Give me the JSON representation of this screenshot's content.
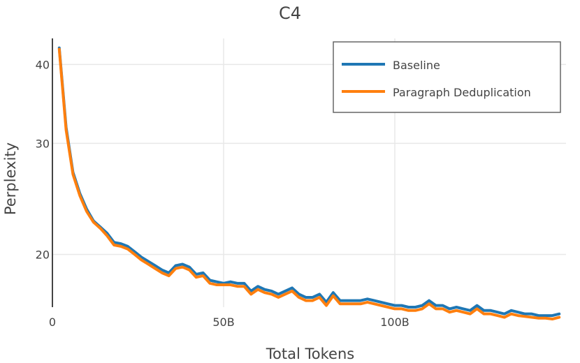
{
  "chart_data": {
    "type": "line",
    "title": "C4",
    "xlabel": "Total Tokens",
    "ylabel": "Perplexity",
    "y_scale": "log",
    "xlim": [
      0,
      150
    ],
    "ylim": [
      16.5,
      44
    ],
    "x_tick_values": [
      0,
      50,
      100
    ],
    "x_tick_labels": [
      "0",
      "50B",
      "100B"
    ],
    "y_tick_values": [
      20,
      30,
      40
    ],
    "y_tick_labels": [
      "20",
      "30",
      "40"
    ],
    "grid": true,
    "legend_position": "top-right",
    "x": [
      2,
      4,
      6,
      8,
      10,
      12,
      14,
      16,
      18,
      20,
      22,
      24,
      26,
      28,
      30,
      32,
      34,
      36,
      38,
      40,
      42,
      44,
      46,
      48,
      50,
      52,
      54,
      56,
      58,
      60,
      62,
      64,
      66,
      68,
      70,
      72,
      74,
      76,
      78,
      80,
      82,
      84,
      86,
      88,
      90,
      92,
      94,
      96,
      98,
      100,
      102,
      104,
      106,
      108,
      110,
      112,
      114,
      116,
      118,
      120,
      122,
      124,
      126,
      128,
      130,
      132,
      134,
      136,
      138,
      140,
      142,
      144,
      146,
      148
    ],
    "series": [
      {
        "name": "Baseline",
        "color": "#1f77b4",
        "values": [
          42.5,
          31.8,
          27.0,
          25.0,
          23.6,
          22.6,
          22.1,
          21.6,
          20.9,
          20.8,
          20.6,
          20.2,
          19.8,
          19.5,
          19.2,
          18.9,
          18.7,
          19.2,
          19.3,
          19.1,
          18.6,
          18.7,
          18.2,
          18.1,
          18.0,
          18.1,
          18.0,
          18.0,
          17.5,
          17.8,
          17.6,
          17.5,
          17.3,
          17.5,
          17.7,
          17.3,
          17.1,
          17.1,
          17.3,
          16.8,
          17.4,
          16.9,
          16.9,
          16.9,
          16.9,
          17.0,
          16.9,
          16.8,
          16.7,
          16.6,
          16.6,
          16.5,
          16.5,
          16.6,
          16.9,
          16.6,
          16.6,
          16.4,
          16.5,
          16.4,
          16.3,
          16.6,
          16.3,
          16.3,
          16.2,
          16.1,
          16.3,
          16.2,
          16.1,
          16.1,
          16.0,
          16.0,
          16.0,
          16.1
        ]
      },
      {
        "name": "Paragraph Deduplication",
        "color": "#ff7f0e",
        "values": [
          42.3,
          31.5,
          26.8,
          24.8,
          23.4,
          22.5,
          22.0,
          21.4,
          20.7,
          20.6,
          20.4,
          20.0,
          19.6,
          19.3,
          19.0,
          18.7,
          18.5,
          19.0,
          19.1,
          18.9,
          18.4,
          18.5,
          18.0,
          17.9,
          17.9,
          17.9,
          17.8,
          17.8,
          17.3,
          17.6,
          17.4,
          17.3,
          17.1,
          17.3,
          17.5,
          17.1,
          16.9,
          16.9,
          17.1,
          16.6,
          17.2,
          16.7,
          16.7,
          16.7,
          16.7,
          16.8,
          16.7,
          16.6,
          16.5,
          16.4,
          16.4,
          16.3,
          16.3,
          16.4,
          16.7,
          16.4,
          16.4,
          16.2,
          16.3,
          16.2,
          16.1,
          16.4,
          16.1,
          16.1,
          16.0,
          15.9,
          16.1,
          16.0,
          15.95,
          15.9,
          15.85,
          15.85,
          15.8,
          15.9
        ]
      }
    ]
  }
}
